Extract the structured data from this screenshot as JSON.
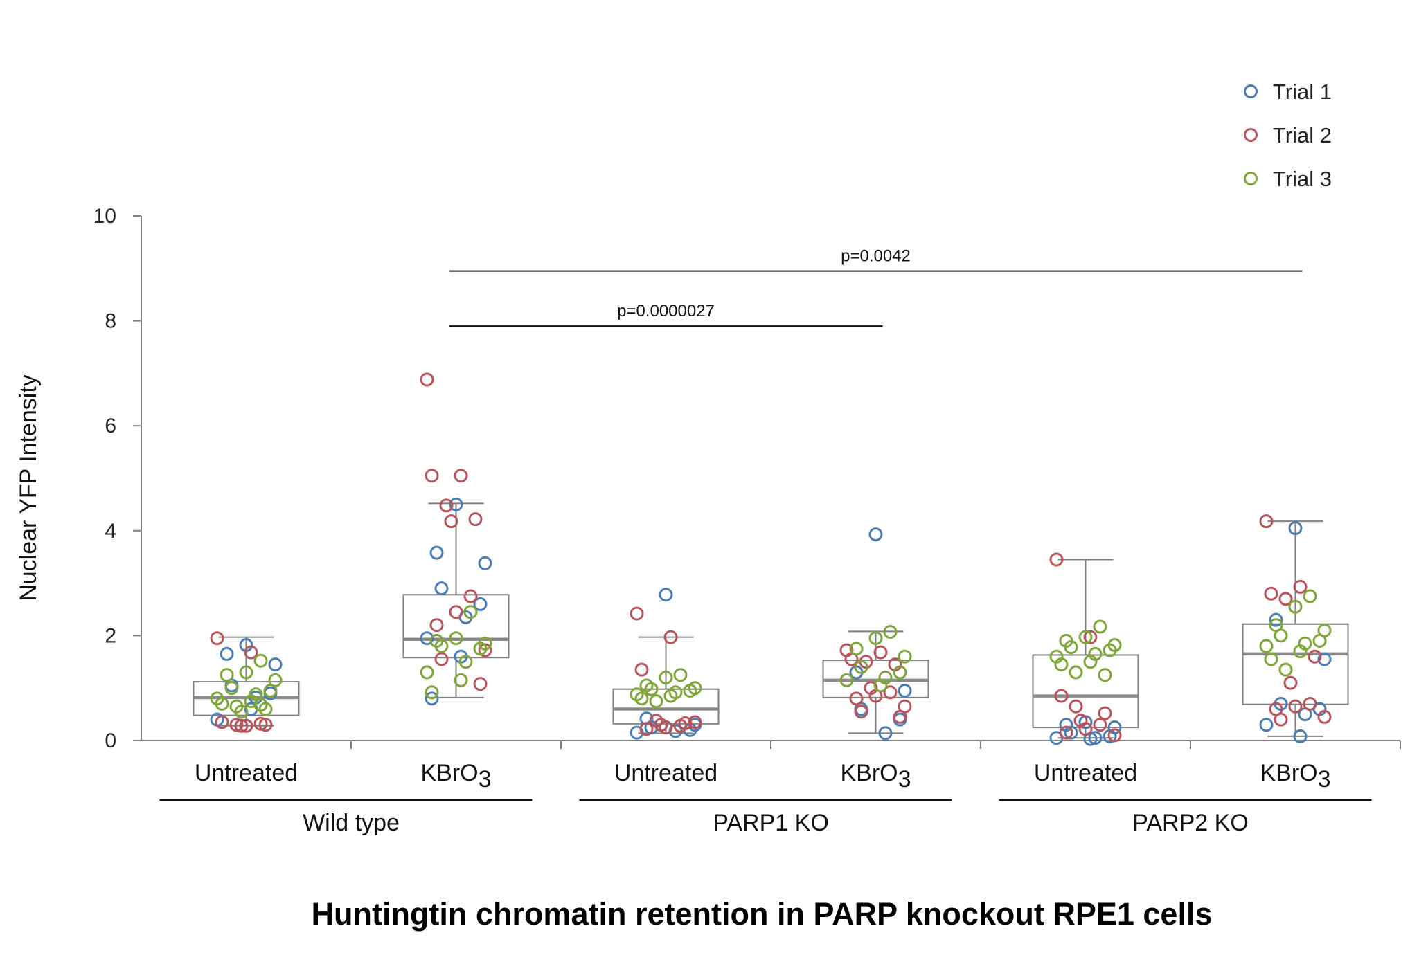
{
  "chart_data": {
    "type": "box",
    "title": "Huntingtin chromatin retention in PARP knockout RPE1 cells",
    "ylabel": "Nuclear YFP Intensity",
    "xlabel": "",
    "ylim": [
      0,
      10
    ],
    "yticks": [
      0,
      2,
      4,
      6,
      8,
      10
    ],
    "legend_position": "top-right",
    "series": [
      {
        "name": "Trial 1",
        "color": "#4a7db4"
      },
      {
        "name": "Trial 2",
        "color": "#b8545c"
      },
      {
        "name": "Trial 3",
        "color": "#7fa63a"
      }
    ],
    "groups": [
      {
        "label": "Wild type"
      },
      {
        "label": "PARP1 KO"
      },
      {
        "label": "PARP2 KO"
      }
    ],
    "categories": [
      {
        "label": "Untreated",
        "group": "Wild type",
        "box": {
          "min": 0.28,
          "q1": 0.48,
          "median": 0.82,
          "q3": 1.12,
          "max": 1.97
        },
        "points": {
          "Trial 1": [
            1.82,
            1.65,
            1.45,
            1.05,
            0.9,
            0.82,
            0.4,
            0.6
          ],
          "Trial 2": [
            1.95,
            1.68,
            0.35,
            0.3,
            0.3,
            0.28,
            0.32,
            0.28
          ],
          "Trial 3": [
            1.52,
            1.3,
            1.25,
            1.15,
            1.0,
            0.95,
            0.88,
            0.8,
            0.75,
            0.7,
            0.65,
            0.6,
            0.55,
            0.68
          ]
        }
      },
      {
        "label": "KBrO",
        "sub": "3",
        "group": "Wild type",
        "box": {
          "min": 0.82,
          "q1": 1.58,
          "median": 1.93,
          "q3": 2.78,
          "max": 4.52
        },
        "points": {
          "Trial 1": [
            4.5,
            3.58,
            3.38,
            2.9,
            2.6,
            2.35,
            1.95,
            1.6,
            0.8
          ],
          "Trial 2": [
            6.88,
            5.05,
            5.05,
            4.48,
            4.22,
            4.18,
            2.75,
            2.45,
            2.2,
            1.72,
            1.55,
            1.08
          ],
          "Trial 3": [
            2.45,
            1.95,
            1.9,
            1.85,
            1.8,
            1.75,
            1.5,
            1.3,
            1.15,
            0.92
          ]
        }
      },
      {
        "label": "Untreated",
        "group": "PARP1 KO",
        "box": {
          "min": 0.14,
          "q1": 0.32,
          "median": 0.6,
          "q3": 0.98,
          "max": 1.97
        },
        "points": {
          "Trial 1": [
            2.78,
            0.42,
            0.3,
            0.25,
            0.2,
            0.18,
            0.15
          ],
          "Trial 2": [
            2.42,
            1.97,
            1.35,
            0.38,
            0.33,
            0.3,
            0.28,
            0.25,
            0.22,
            0.35
          ],
          "Trial 3": [
            1.25,
            1.2,
            1.05,
            1.0,
            0.98,
            0.95,
            0.92,
            0.88,
            0.85,
            0.8,
            0.75
          ]
        }
      },
      {
        "label": "KBrO",
        "sub": "3",
        "group": "PARP1 KO",
        "box": {
          "min": 0.14,
          "q1": 0.82,
          "median": 1.15,
          "q3": 1.53,
          "max": 2.08
        },
        "points": {
          "Trial 1": [
            3.93,
            1.3,
            0.95,
            0.6,
            0.4,
            0.14
          ],
          "Trial 2": [
            1.72,
            1.68,
            1.55,
            1.5,
            1.45,
            1.0,
            0.92,
            0.85,
            0.8,
            0.65,
            0.55,
            0.45
          ],
          "Trial 3": [
            2.07,
            1.95,
            1.75,
            1.6,
            1.4,
            1.3,
            1.2,
            1.15,
            1.05
          ]
        }
      },
      {
        "label": "Untreated",
        "group": "PARP2 KO",
        "box": {
          "min": 0.05,
          "q1": 0.25,
          "median": 0.85,
          "q3": 1.63,
          "max": 3.45
        },
        "points": {
          "Trial 1": [
            0.35,
            0.3,
            0.25,
            0.15,
            0.08,
            0.05,
            0.05,
            0.03
          ],
          "Trial 2": [
            3.45,
            1.97,
            0.85,
            0.65,
            0.52,
            0.38,
            0.3,
            0.22,
            0.15,
            0.1
          ],
          "Trial 3": [
            2.17,
            1.97,
            1.9,
            1.82,
            1.78,
            1.72,
            1.65,
            1.6,
            1.5,
            1.45,
            1.3,
            1.25
          ]
        }
      },
      {
        "label": "KBrO",
        "sub": "3",
        "group": "PARP2 KO",
        "box": {
          "min": 0.08,
          "q1": 0.69,
          "median": 1.65,
          "q3": 2.22,
          "max": 4.18
        },
        "points": {
          "Trial 1": [
            4.05,
            2.3,
            1.55,
            0.7,
            0.6,
            0.5,
            0.3,
            0.08
          ],
          "Trial 2": [
            4.18,
            2.93,
            2.8,
            2.7,
            1.6,
            1.1,
            0.7,
            0.65,
            0.6,
            0.45,
            0.4
          ],
          "Trial 3": [
            2.75,
            2.55,
            2.2,
            2.1,
            2.0,
            1.9,
            1.85,
            1.8,
            1.7,
            1.55,
            1.35
          ]
        }
      }
    ],
    "annotations": [
      {
        "text": "p=0.0042",
        "from": 1,
        "to": 5,
        "y": 8.95
      },
      {
        "text": "p=0.0000027",
        "from": 1,
        "to": 3,
        "y": 7.9
      }
    ]
  }
}
